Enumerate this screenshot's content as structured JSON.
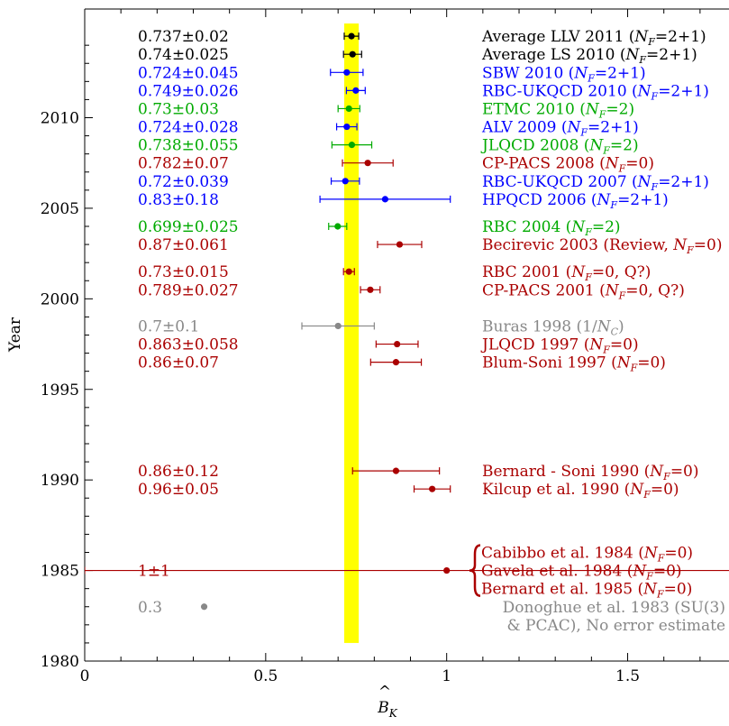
{
  "chart_data": {
    "type": "scatter",
    "xlabel": "B̂_K",
    "ylabel": "Year",
    "xlim": [
      0,
      1.78
    ],
    "ylim": [
      1980,
      2016
    ],
    "xticks": [
      "0",
      "0.5",
      "1",
      "1.5"
    ],
    "yticks": [
      "1980",
      "1985",
      "1990",
      "1995",
      "2000",
      "2005",
      "2010"
    ],
    "band": {
      "from": 0.717,
      "to": 0.757,
      "color": "#ffff00"
    },
    "colors": {
      "dynamical": "#0000ff",
      "two_flavor": "#00aa00",
      "quenched": "#aa0000",
      "average": "#000000",
      "other": "#888888"
    },
    "points": [
      {
        "y": 2014.5,
        "x": 0.737,
        "err": 0.02,
        "value_text": "0.737±0.02",
        "label": "Average LLV 2011 (N_F=2+1)",
        "color": "#000000"
      },
      {
        "y": 2013.5,
        "x": 0.74,
        "err": 0.025,
        "value_text": "0.74±0.025",
        "label": "Average LS 2010 (N_F=2+1)",
        "color": "#000000"
      },
      {
        "y": 2012.5,
        "x": 0.724,
        "err": 0.045,
        "value_text": "0.724±0.045",
        "label": "SBW 2010 (N_F=2+1)",
        "color": "#0000ff"
      },
      {
        "y": 2011.5,
        "x": 0.749,
        "err": 0.026,
        "value_text": "0.749±0.026",
        "label": "RBC-UKQCD 2010 (N_F=2+1)",
        "color": "#0000ff"
      },
      {
        "y": 2010.5,
        "x": 0.73,
        "err": 0.03,
        "value_text": "0.73±0.03",
        "label": "ETMC 2010 (N_F=2)",
        "color": "#00aa00"
      },
      {
        "y": 2009.5,
        "x": 0.724,
        "err": 0.028,
        "value_text": "0.724±0.028",
        "label": "ALV 2009 (N_F=2+1)",
        "color": "#0000ff"
      },
      {
        "y": 2008.5,
        "x": 0.738,
        "err": 0.055,
        "value_text": "0.738±0.055",
        "label": "JLQCD 2008 (N_F=2)",
        "color": "#00aa00"
      },
      {
        "y": 2007.5,
        "x": 0.782,
        "err": 0.07,
        "value_text": "0.782±0.07",
        "label": "CP-PACS 2008 (N_F=0)",
        "color": "#aa0000"
      },
      {
        "y": 2006.5,
        "x": 0.72,
        "err": 0.039,
        "value_text": "0.72±0.039",
        "label": "RBC-UKQCD 2007 (N_F=2+1)",
        "color": "#0000ff"
      },
      {
        "y": 2005.5,
        "x": 0.83,
        "err": 0.18,
        "value_text": "0.83±0.18",
        "label": "HPQCD 2006 (N_F=2+1)",
        "color": "#0000ff"
      },
      {
        "y": 2004.0,
        "x": 0.699,
        "err": 0.025,
        "value_text": "0.699±0.025",
        "label": "RBC 2004 (N_F=2)",
        "color": "#00aa00"
      },
      {
        "y": 2003.0,
        "x": 0.87,
        "err": 0.061,
        "value_text": "0.87±0.061",
        "label": "Becirevic 2003 (Review, N_F=0)",
        "color": "#aa0000"
      },
      {
        "y": 2001.5,
        "x": 0.73,
        "err": 0.015,
        "value_text": "0.73±0.015",
        "label": "RBC 2001 (N_F=0, Q?)",
        "color": "#aa0000"
      },
      {
        "y": 2000.5,
        "x": 0.789,
        "err": 0.027,
        "value_text": "0.789±0.027",
        "label": "CP-PACS 2001 (N_F=0, Q?)",
        "color": "#aa0000"
      },
      {
        "y": 1998.5,
        "x": 0.7,
        "err": 0.1,
        "value_text": "0.7±0.1",
        "label": "Buras 1998 (1/N_C)",
        "color": "#888888"
      },
      {
        "y": 1997.5,
        "x": 0.863,
        "err": 0.058,
        "value_text": "0.863±0.058",
        "label": "JLQCD 1997 (N_F=0)",
        "color": "#aa0000"
      },
      {
        "y": 1996.5,
        "x": 0.86,
        "err": 0.07,
        "value_text": "0.86±0.07",
        "label": "Blum-Soni 1997 (N_F=0)",
        "color": "#aa0000"
      },
      {
        "y": 1990.5,
        "x": 0.86,
        "err": 0.12,
        "value_text": "0.86±0.12",
        "label": "Bernard - Soni 1990 (N_F=0)",
        "color": "#aa0000"
      },
      {
        "y": 1989.5,
        "x": 0.96,
        "err": 0.05,
        "value_text": "0.96±0.05",
        "label": "Kilcup et al. 1990 (N_F=0)",
        "color": "#aa0000"
      },
      {
        "y": 1985.0,
        "x": 1.0,
        "err": 1.0,
        "value_text": "1±1",
        "label": "",
        "color": "#aa0000"
      },
      {
        "y": 1983.0,
        "x": 0.33,
        "err": 0,
        "value_text": "0.3",
        "label": "",
        "color": "#888888"
      }
    ],
    "bracket_labels": [
      {
        "text": "Cabibbo et al. 1984 (N_F=0)",
        "color": "#aa0000"
      },
      {
        "text": "Gavela et al. 1984 (N_F=0)",
        "color": "#aa0000"
      },
      {
        "text": "Bernard et al. 1985 (N_F=0)",
        "color": "#aa0000"
      }
    ],
    "note_lines": [
      {
        "text": "Donoghue et al. 1983 (SU(3)",
        "color": "#888888"
      },
      {
        "text": "& PCAC), No error estimate",
        "color": "#888888"
      }
    ]
  }
}
